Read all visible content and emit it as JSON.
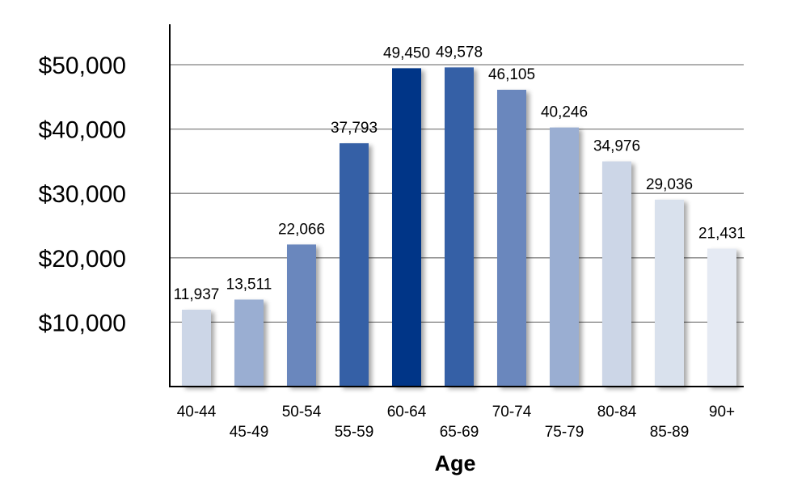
{
  "chart_data": {
    "type": "bar",
    "xlabel": "Age",
    "ylabel": "",
    "categories": [
      "40-44",
      "45-49",
      "50-54",
      "55-59",
      "60-64",
      "65-69",
      "70-74",
      "75-79",
      "80-84",
      "85-89",
      "90+"
    ],
    "values": [
      11937,
      13511,
      22066,
      37793,
      49450,
      49578,
      46105,
      40246,
      34976,
      29036,
      21431
    ],
    "value_labels": [
      "11,937",
      "13,511",
      "22,066",
      "37,793",
      "49,450",
      "49,578",
      "46,105",
      "40,246",
      "34,976",
      "29,036",
      "21,431"
    ],
    "bar_colors": [
      "#ccd6e7",
      "#9aaed2",
      "#6b87bd",
      "#3560a6",
      "#043587",
      "#3560a6",
      "#6b87bd",
      "#9aaed2",
      "#ccd6e7",
      "#d9e1ed",
      "#e5eaf3"
    ],
    "yticks": [
      10000,
      20000,
      30000,
      40000,
      50000
    ],
    "ytick_labels": [
      "$10,000",
      "$20,000",
      "$30,000",
      "$40,000",
      "$50,000"
    ],
    "ylim": [
      0,
      56000
    ],
    "grid": true,
    "legend": "none",
    "gridline_color": "#808080",
    "axis_color": "#000000"
  }
}
